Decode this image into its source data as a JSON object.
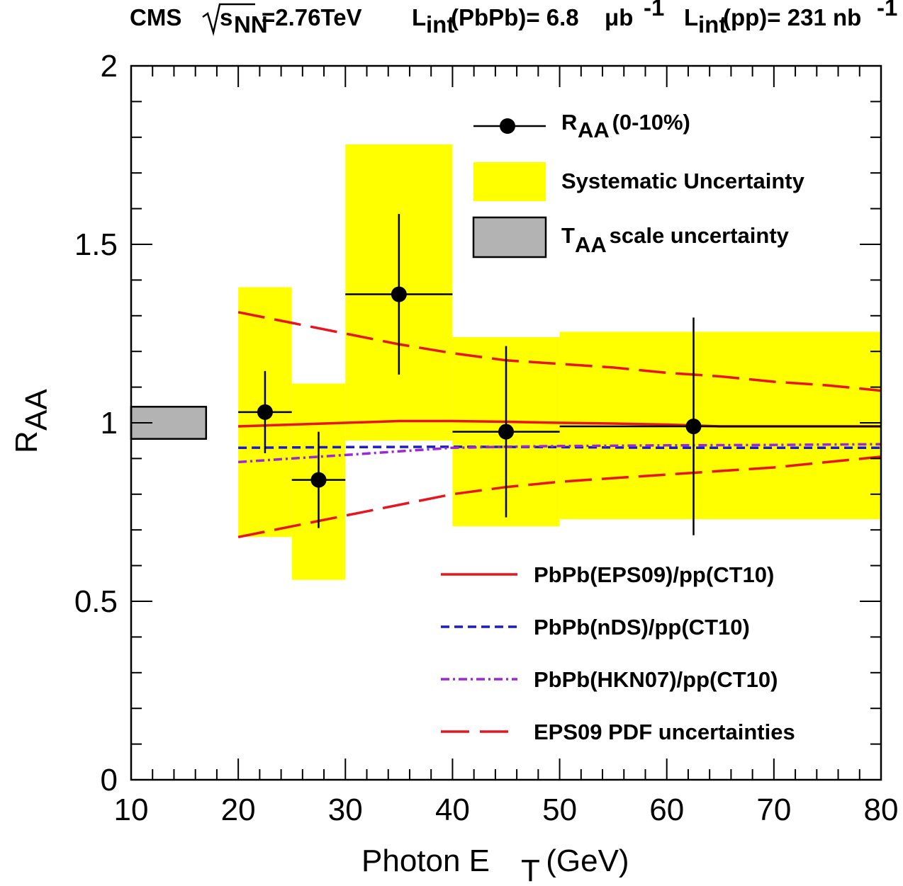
{
  "title": {
    "experiment": "CMS",
    "energy_sub": "NN",
    "energy_value": "=2.76TeV",
    "lumi1_prefix": "L",
    "lumi1_sub": "int",
    "lumi1_rest": "(PbPb)= 6.8",
    "lumi1_unit": "μb",
    "lumi1_exp": "-1",
    "lumi2_prefix": "L",
    "lumi2_sub": "int",
    "lumi2_rest": "(pp)= 231 nb",
    "lumi2_exp": "-1"
  },
  "chart_data": {
    "type": "scatter",
    "xlabel": "Photon E",
    "xlabel_sub": "T",
    "xlabel_unit": " (GeV)",
    "ylabel": "R",
    "ylabel_sub": "AA",
    "xlim": [
      10,
      80
    ],
    "ylim": [
      0,
      2
    ],
    "x_ticks": [
      "10",
      "20",
      "30",
      "40",
      "50",
      "60",
      "70",
      "80"
    ],
    "y_ticks": [
      "0",
      "0.5",
      "1",
      "1.5",
      "2"
    ],
    "legend_position": "top-right",
    "data_points": {
      "name": "R",
      "name_sub": "AA",
      "name_rest": " (0-10%)",
      "color": "#000000",
      "points": [
        {
          "x": 22.5,
          "y": 1.03,
          "x_lo": 20,
          "x_hi": 25,
          "y_err": 0.115
        },
        {
          "x": 27.5,
          "y": 0.84,
          "x_lo": 25,
          "x_hi": 30,
          "y_err": 0.135
        },
        {
          "x": 35,
          "y": 1.36,
          "x_lo": 30,
          "x_hi": 40,
          "y_err": 0.225
        },
        {
          "x": 45,
          "y": 0.975,
          "x_lo": 40,
          "x_hi": 50,
          "y_err": 0.24
        },
        {
          "x": 62.5,
          "y": 0.99,
          "x_lo": 50,
          "x_hi": 80,
          "y_err": 0.305
        }
      ]
    },
    "systematic_uncertainty": {
      "name": "Systematic Uncertainty",
      "color": "#ffff00",
      "boxes": [
        {
          "x_lo": 20,
          "x_hi": 25,
          "y_lo": 0.68,
          "y_hi": 1.38
        },
        {
          "x_lo": 25,
          "x_hi": 30,
          "y_lo": 0.56,
          "y_hi": 1.11
        },
        {
          "x_lo": 30,
          "x_hi": 40,
          "y_lo": 0.95,
          "y_hi": 1.78
        },
        {
          "x_lo": 40,
          "x_hi": 50,
          "y_lo": 0.71,
          "y_hi": 1.24
        },
        {
          "x_lo": 50,
          "x_hi": 80,
          "y_lo": 0.73,
          "y_hi": 1.255
        }
      ]
    },
    "taa_scale_uncertainty": {
      "name": "T",
      "name_sub": "AA",
      "name_rest": " scale uncertainty",
      "color": "#b3b3b3",
      "x_lo": 10,
      "x_hi": 17,
      "y_lo": 0.955,
      "y_hi": 1.045
    },
    "series": [
      {
        "name": "PbPb(EPS09)/pp(CT10)",
        "color": "#e8141e",
        "style": "solid",
        "x": [
          20,
          25,
          30,
          35,
          40,
          45,
          50,
          55,
          60,
          65,
          70,
          75,
          80
        ],
        "y": [
          0.99,
          0.995,
          1.0,
          1.005,
          1.005,
          1.003,
          1.0,
          0.998,
          0.995,
          0.99,
          0.99,
          0.99,
          0.99
        ]
      },
      {
        "name": "PbPb(nDS)/pp(CT10)",
        "color": "#1a1ad0",
        "style": "dashed",
        "x": [
          20,
          30,
          40,
          50,
          60,
          70,
          80
        ],
        "y": [
          0.93,
          0.932,
          0.933,
          0.932,
          0.93,
          0.93,
          0.93
        ]
      },
      {
        "name": "PbPb(HKN07)/pp(CT10)",
        "color": "#9b28d8",
        "style": "dashdot",
        "x": [
          20,
          25,
          30,
          35,
          40,
          45,
          50,
          60,
          70,
          80
        ],
        "y": [
          0.89,
          0.9,
          0.91,
          0.92,
          0.93,
          0.933,
          0.935,
          0.937,
          0.938,
          0.94
        ]
      },
      {
        "name": "EPS09 PDF uncertainties",
        "color": "#e8141e",
        "style": "longdash",
        "x": [
          20,
          25,
          30,
          35,
          40,
          45,
          50,
          55,
          60,
          65,
          70,
          75,
          80
        ],
        "y": [
          1.31,
          1.28,
          1.25,
          1.22,
          1.195,
          1.175,
          1.165,
          1.155,
          1.14,
          1.13,
          1.115,
          1.105,
          1.09
        ]
      },
      {
        "name": "EPS09 PDF uncertainties",
        "color": "#e8141e",
        "style": "longdash",
        "x": [
          20,
          25,
          30,
          35,
          40,
          45,
          50,
          55,
          60,
          65,
          70,
          75,
          80
        ],
        "y": [
          0.68,
          0.71,
          0.74,
          0.77,
          0.8,
          0.82,
          0.835,
          0.845,
          0.855,
          0.865,
          0.875,
          0.89,
          0.905
        ]
      }
    ]
  }
}
